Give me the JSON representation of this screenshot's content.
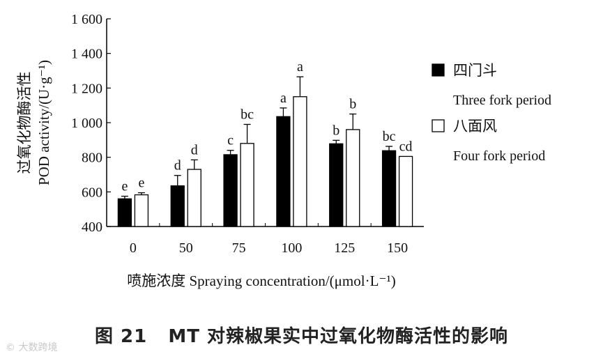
{
  "chart_data": {
    "type": "bar",
    "categories": [
      "0",
      "50",
      "75",
      "100",
      "125",
      "150"
    ],
    "series": [
      {
        "name_cn": "四门斗",
        "name": "Three fork period",
        "color": "#000000",
        "values": [
          560,
          635,
          815,
          1035,
          878,
          838
        ],
        "errors": [
          15,
          60,
          25,
          50,
          20,
          25
        ],
        "letters": [
          "e",
          "d",
          "c",
          "a",
          "b",
          "bc"
        ]
      },
      {
        "name_cn": "八面风",
        "name": "Four fork period",
        "color": "#ffffff",
        "values": [
          583,
          730,
          880,
          1150,
          960,
          805
        ],
        "errors": [
          12,
          55,
          110,
          115,
          90,
          0
        ],
        "letters": [
          "e",
          "d",
          "bc",
          "a",
          "b",
          "cd"
        ]
      }
    ],
    "ylim": [
      400,
      1600
    ],
    "yticks": [
      "400",
      "600",
      "800",
      "1 000",
      "1 200",
      "1 400",
      "1 600"
    ],
    "ylabel_cn": "过氧化物酶活性",
    "ylabel": "POD activity/(U·g⁻¹)",
    "xlabel": "喷施浓度 Spraying concentration/(μmol·L⁻¹)",
    "legend_position": "right",
    "grid": false
  },
  "caption": "图 21   MT 对辣椒果实中过氧化物酶活性的影响",
  "watermark": "© 大数跨境"
}
